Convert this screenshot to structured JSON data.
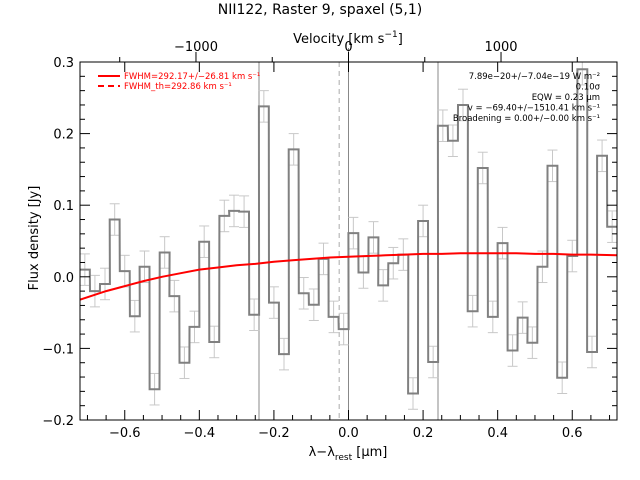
{
  "chart_data": {
    "type": "line",
    "title": "NII122, Raster 9, spaxel (5,1)",
    "xlabel": "λ−λrest [μm]",
    "xlabel_main": "λ−λ",
    "xlabel_sub": "rest",
    "xlabel_unit": " [μm]",
    "ylabel": "Flux density [Jy]",
    "top_axis_label": "Velocity [km s⁻¹]",
    "top_axis_label_main": "Velocity [km s",
    "top_axis_label_sup": "−1",
    "top_axis_label_end": "]",
    "xlim": [
      -0.72,
      0.72
    ],
    "ylim": [
      -0.2,
      0.3
    ],
    "x_ticks": [
      "−0.6",
      "−0.4",
      "−0.2",
      "0.0",
      "0.2",
      "0.4",
      "0.6"
    ],
    "x_tick_values": [
      -0.6,
      -0.4,
      -0.2,
      0.0,
      0.2,
      0.4,
      0.6
    ],
    "y_ticks": [
      "−0.2",
      "−0.1",
      "0.0",
      "0.1",
      "0.2",
      "0.3"
    ],
    "y_tick_values": [
      -0.2,
      -0.1,
      0.0,
      0.1,
      0.2,
      0.3
    ],
    "top_ticks": [
      "−1000",
      "0",
      "1000"
    ],
    "top_tick_values": [
      -1000,
      0,
      1000
    ],
    "velocity_per_micron": 2445,
    "legend": [
      {
        "label": "FWHM=292.17+/−26.81 km s⁻¹",
        "style": "solid",
        "color": "#ff0000"
      },
      {
        "label": "FWHM_th=292.86 km s⁻¹",
        "style": "dashed",
        "color": "#ff0000"
      }
    ],
    "annotations": [
      "7.89e−20+/−7.04e−19 W m⁻²",
      "0.10σ",
      "EQW = 0.23 μm",
      "v = −69.40+/−1510.41 km s⁻¹",
      "Broadening = 0.00+/−0.00 km s⁻¹"
    ],
    "vertical_lines": [
      {
        "x": -0.24,
        "style": "solid"
      },
      {
        "x": -0.025,
        "style": "dashed"
      },
      {
        "x": 0.24,
        "style": "solid"
      },
      {
        "x": 0.0,
        "style": "solid",
        "extends_to_top": true
      }
    ],
    "series": [
      {
        "name": "Spectrum",
        "color": "#808080",
        "style": "step",
        "bin_width": 0.0266,
        "x": [
          -0.707,
          -0.68,
          -0.653,
          -0.627,
          -0.6,
          -0.573,
          -0.547,
          -0.52,
          -0.493,
          -0.467,
          -0.44,
          -0.413,
          -0.387,
          -0.36,
          -0.333,
          -0.307,
          -0.28,
          -0.253,
          -0.227,
          -0.2,
          -0.173,
          -0.147,
          -0.12,
          -0.093,
          -0.067,
          -0.04,
          -0.013,
          0.013,
          0.04,
          0.067,
          0.093,
          0.12,
          0.147,
          0.173,
          0.2,
          0.227,
          0.253,
          0.28,
          0.307,
          0.333,
          0.36,
          0.387,
          0.413,
          0.44,
          0.467,
          0.493,
          0.52,
          0.547,
          0.573,
          0.6,
          0.627,
          0.653,
          0.68,
          0.707
        ],
        "y": [
          0.01,
          -0.02,
          -0.01,
          0.08,
          0.008,
          -0.055,
          0.014,
          -0.157,
          0.034,
          -0.027,
          -0.12,
          -0.07,
          0.049,
          -0.091,
          0.085,
          0.092,
          0.091,
          -0.053,
          0.238,
          -0.036,
          -0.108,
          0.178,
          -0.023,
          -0.039,
          0.025,
          -0.056,
          -0.073,
          0.061,
          0.006,
          0.055,
          -0.012,
          0.019,
          0.031,
          -0.163,
          0.078,
          -0.119,
          0.211,
          0.19,
          0.24,
          -0.048,
          0.152,
          -0.056,
          0.047,
          -0.103,
          -0.057,
          -0.092,
          0.014,
          0.155,
          -0.141,
          0.029,
          0.29,
          -0.105,
          0.169,
          0.07
        ]
      },
      {
        "name": "Fit",
        "color": "#ff0000",
        "style": "line",
        "x": [
          -0.72,
          -0.65,
          -0.6,
          -0.55,
          -0.5,
          -0.45,
          -0.4,
          -0.35,
          -0.3,
          -0.25,
          -0.2,
          -0.15,
          -0.1,
          -0.05,
          0.0,
          0.05,
          0.1,
          0.15,
          0.2,
          0.25,
          0.3,
          0.35,
          0.4,
          0.45,
          0.5,
          0.55,
          0.6,
          0.65,
          0.72
        ],
        "y": [
          -0.032,
          -0.02,
          -0.013,
          -0.006,
          0.0,
          0.005,
          0.01,
          0.013,
          0.016,
          0.018,
          0.021,
          0.023,
          0.025,
          0.027,
          0.028,
          0.029,
          0.03,
          0.031,
          0.032,
          0.032,
          0.033,
          0.033,
          0.033,
          0.033,
          0.032,
          0.032,
          0.031,
          0.031,
          0.03
        ]
      }
    ],
    "error": 0.022
  }
}
